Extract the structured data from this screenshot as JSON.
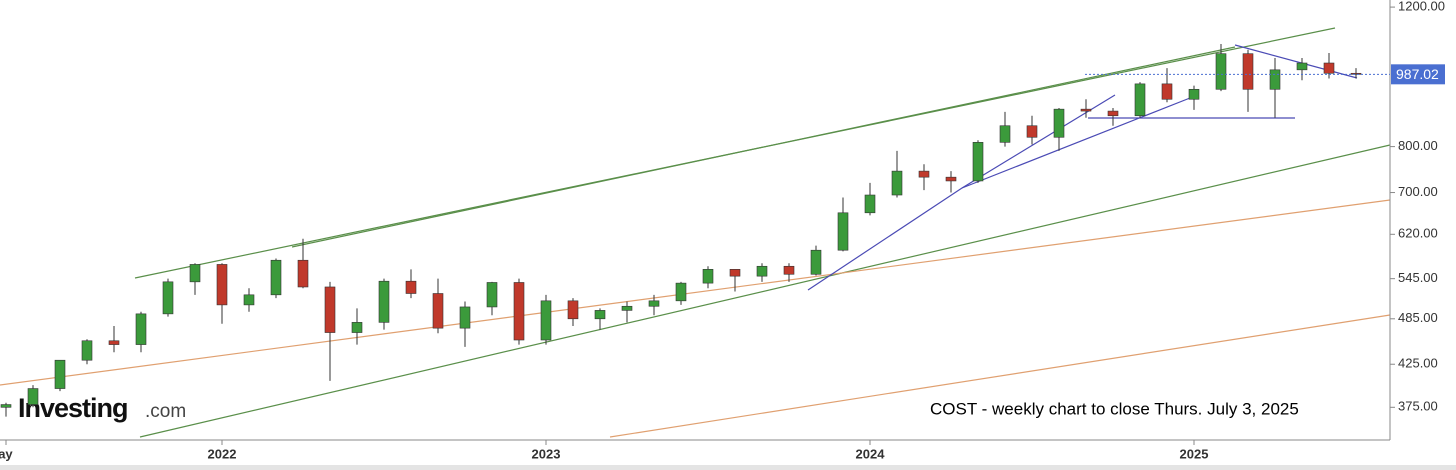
{
  "chart_data": {
    "type": "candlestick",
    "annotation": "COST - weekly chart to close Thurs. July 3, 2025",
    "logo": "Investing",
    "logo_suffix": ".com",
    "categories": [
      "May",
      null,
      null,
      null,
      null,
      null,
      null,
      null,
      "2022",
      null,
      null,
      null,
      null,
      null,
      null,
      null,
      null,
      null,
      null,
      null,
      "2023",
      null,
      null,
      null,
      null,
      null,
      null,
      null,
      null,
      null,
      null,
      null,
      "2024",
      null,
      null,
      null,
      null,
      null,
      null,
      null,
      null,
      null,
      null,
      null,
      "2025",
      null,
      null,
      null,
      null,
      null,
      null
    ],
    "open": [
      375,
      378,
      396,
      430,
      455,
      450,
      492,
      540,
      568,
      505,
      520,
      575,
      532,
      466,
      480,
      541,
      522,
      472,
      502,
      539,
      456,
      511,
      485,
      497,
      503,
      511,
      538,
      560,
      549,
      565,
      552,
      592,
      660,
      695,
      745,
      732,
      724,
      810,
      850,
      822,
      892,
      887,
      875,
      960,
      918,
      945,
      1048,
      945,
      1000,
      1020,
      990
    ],
    "high": [
      380,
      400,
      430,
      457,
      475,
      495,
      545,
      570,
      570,
      530,
      578,
      612,
      540,
      500,
      545,
      560,
      545,
      510,
      540,
      545,
      520,
      515,
      500,
      510,
      520,
      540,
      565,
      560,
      570,
      570,
      600,
      690,
      720,
      790,
      760,
      745,
      815,
      885,
      875,
      895,
      918,
      895,
      965,
      1005,
      955,
      1078,
      1060,
      1035,
      1035,
      1050,
      1005
    ],
    "low": [
      365,
      375,
      393,
      425,
      440,
      440,
      488,
      520,
      478,
      495,
      515,
      530,
      405,
      450,
      470,
      515,
      465,
      447,
      490,
      450,
      450,
      475,
      470,
      480,
      490,
      505,
      530,
      525,
      540,
      540,
      550,
      590,
      655,
      690,
      705,
      700,
      720,
      800,
      805,
      790,
      870,
      850,
      870,
      910,
      890,
      940,
      885,
      870,
      970,
      975,
      975
    ],
    "close": [
      378,
      396,
      430,
      455,
      450,
      492,
      540,
      568,
      505,
      520,
      575,
      532,
      466,
      480,
      541,
      522,
      472,
      502,
      539,
      456,
      511,
      485,
      497,
      503,
      511,
      538,
      560,
      549,
      565,
      552,
      592,
      660,
      695,
      745,
      732,
      724,
      810,
      850,
      822,
      892,
      887,
      875,
      960,
      918,
      945,
      1048,
      945,
      1000,
      1020,
      990,
      987
    ],
    "up_color": "#3b9a3b",
    "down_color": "#c0392b",
    "last_price": 987.02,
    "last_price_color": "#4a6fd1",
    "log_scale": true,
    "ylim": [
      341,
      1225
    ],
    "yticks": [
      {
        "value": 375,
        "label": "375.00"
      },
      {
        "value": 425,
        "label": "425.00"
      },
      {
        "value": 485,
        "label": "485.00"
      },
      {
        "value": 545,
        "label": "545.00"
      },
      {
        "value": 620,
        "label": "620.00"
      },
      {
        "value": 700,
        "label": "700.00"
      },
      {
        "value": 800,
        "label": "800.00"
      },
      {
        "value": 1200,
        "label": "1200.00"
      }
    ]
  }
}
